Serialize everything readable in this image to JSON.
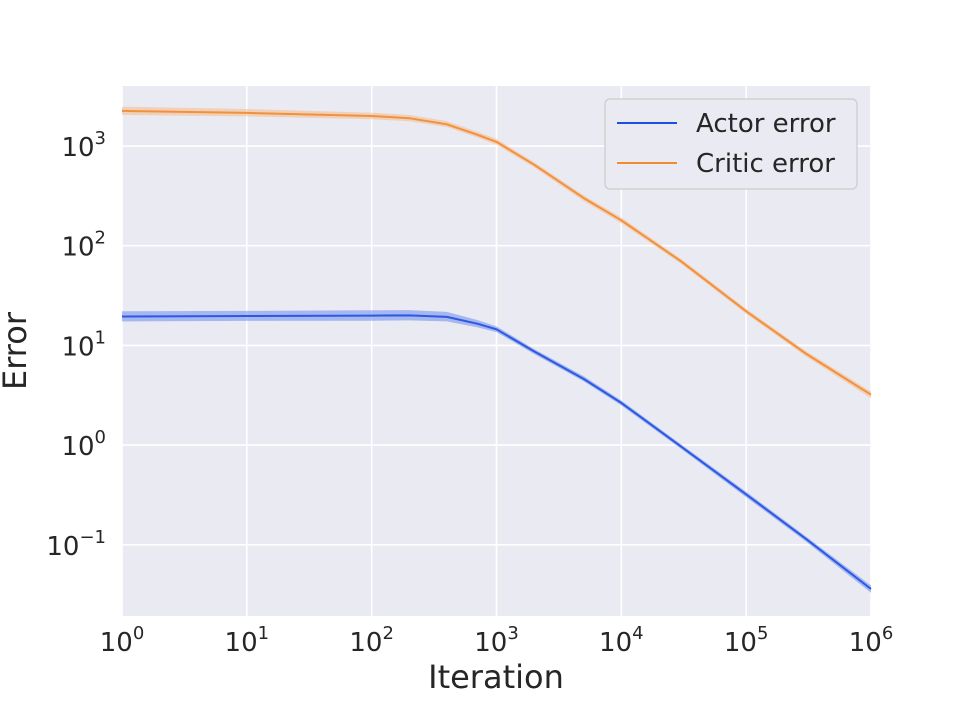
{
  "chart_data": {
    "type": "line",
    "title": "",
    "xlabel": "Iteration",
    "ylabel": "Error",
    "x_scale": "log",
    "y_scale": "log",
    "xlim": [
      1,
      1000000
    ],
    "ylim": [
      0.0193,
      4000
    ],
    "grid": true,
    "legend_position": "top-right",
    "x_ticks": [
      {
        "value": 1,
        "base": "10",
        "exp": "0"
      },
      {
        "value": 10,
        "base": "10",
        "exp": "1"
      },
      {
        "value": 100,
        "base": "10",
        "exp": "2"
      },
      {
        "value": 1000,
        "base": "10",
        "exp": "3"
      },
      {
        "value": 10000,
        "base": "10",
        "exp": "4"
      },
      {
        "value": 100000,
        "base": "10",
        "exp": "5"
      },
      {
        "value": 1000000,
        "base": "10",
        "exp": "6"
      }
    ],
    "y_ticks": [
      {
        "value": 0.1,
        "base": "10",
        "exp": "−1"
      },
      {
        "value": 1,
        "base": "10",
        "exp": "0"
      },
      {
        "value": 10,
        "base": "10",
        "exp": "1"
      },
      {
        "value": 100,
        "base": "10",
        "exp": "2"
      },
      {
        "value": 1000,
        "base": "10",
        "exp": "3"
      }
    ],
    "series": [
      {
        "name": "Actor error",
        "color": "#1f4fe0",
        "band_color": "#6b8bf0",
        "x": [
          1,
          10,
          100,
          200,
          400,
          700,
          1000,
          2000,
          5000,
          10000,
          30000,
          100000,
          300000,
          1000000
        ],
        "y": [
          19.5,
          19.7,
          19.9,
          20.0,
          19.3,
          16.5,
          14.5,
          8.7,
          4.6,
          2.65,
          0.97,
          0.32,
          0.115,
          0.036
        ],
        "y_lower": [
          17.4,
          17.6,
          17.7,
          17.8,
          17.4,
          15.2,
          13.6,
          8.2,
          4.35,
          2.5,
          0.92,
          0.3,
          0.108,
          0.033
        ],
        "y_upper": [
          22.0,
          22.2,
          22.5,
          22.6,
          21.7,
          18.0,
          15.5,
          9.2,
          4.9,
          2.8,
          1.02,
          0.34,
          0.122,
          0.039
        ]
      },
      {
        "name": "Critic error",
        "color": "#f28a2e",
        "band_color": "#f5b98a",
        "x": [
          1,
          10,
          100,
          200,
          400,
          700,
          1000,
          2000,
          5000,
          10000,
          30000,
          100000,
          300000,
          1000000
        ],
        "y": [
          2250,
          2150,
          2000,
          1900,
          1650,
          1300,
          1100,
          650,
          300,
          180,
          70,
          22,
          8.3,
          3.2
        ],
        "y_lower": [
          2050,
          1980,
          1860,
          1770,
          1550,
          1220,
          1030,
          610,
          280,
          168,
          66,
          20.7,
          7.8,
          2.95
        ],
        "y_upper": [
          2480,
          2350,
          2160,
          2050,
          1780,
          1390,
          1180,
          690,
          320,
          192,
          74,
          23.3,
          8.8,
          3.45
        ]
      }
    ]
  }
}
